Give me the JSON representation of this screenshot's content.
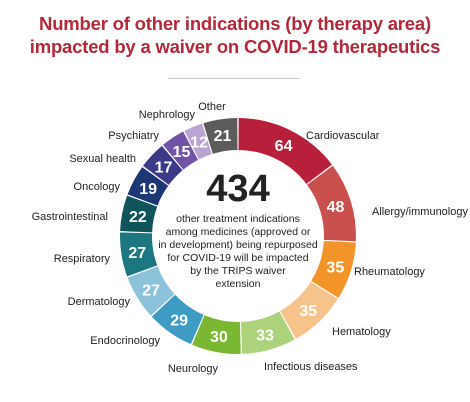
{
  "title_lines": [
    "Number of other indications (by therapy area)",
    "impacted by a waiver on COVID-19 therapeutics"
  ],
  "center": {
    "total": "434",
    "description_lines": [
      "other treatment indications",
      "among medicines (approved or",
      "in development) being repurposed",
      "for COVID-19 will be impacted",
      "by the TRIPS waiver",
      "extension"
    ]
  },
  "chart_data": {
    "type": "pie",
    "donut": true,
    "title": "Number of other indications (by therapy area) impacted by a waiver on COVID-19 therapeutics",
    "total": 434,
    "slices": [
      {
        "label": "Cardiovascular",
        "value": 64,
        "color": "#b81f3a"
      },
      {
        "label": "Allergy/immunology",
        "value": 48,
        "color": "#c9504d"
      },
      {
        "label": "Rheumatology",
        "value": 35,
        "color": "#f39429"
      },
      {
        "label": "Hematology",
        "value": 35,
        "color": "#f6c48a"
      },
      {
        "label": "Infectious diseases",
        "value": 33,
        "color": "#acd37c"
      },
      {
        "label": "Neurology",
        "value": 30,
        "color": "#7ab833"
      },
      {
        "label": "Endocrinology",
        "value": 29,
        "color": "#3d9bc4"
      },
      {
        "label": "Dermatology",
        "value": 27,
        "color": "#8cc3da"
      },
      {
        "label": "Respiratory",
        "value": 27,
        "color": "#1c7780"
      },
      {
        "label": "Gastrointestinal",
        "value": 22,
        "color": "#0f545a"
      },
      {
        "label": "Oncology",
        "value": 19,
        "color": "#1d3674"
      },
      {
        "label": "Sexual health",
        "value": 17,
        "color": "#3c3a88"
      },
      {
        "label": "Psychiatry",
        "value": 15,
        "color": "#7052a6"
      },
      {
        "label": "Nephrology",
        "value": 12,
        "color": "#b9a4d2"
      },
      {
        "label": "Other",
        "value": 21,
        "color": "#5c5c5c"
      }
    ]
  }
}
